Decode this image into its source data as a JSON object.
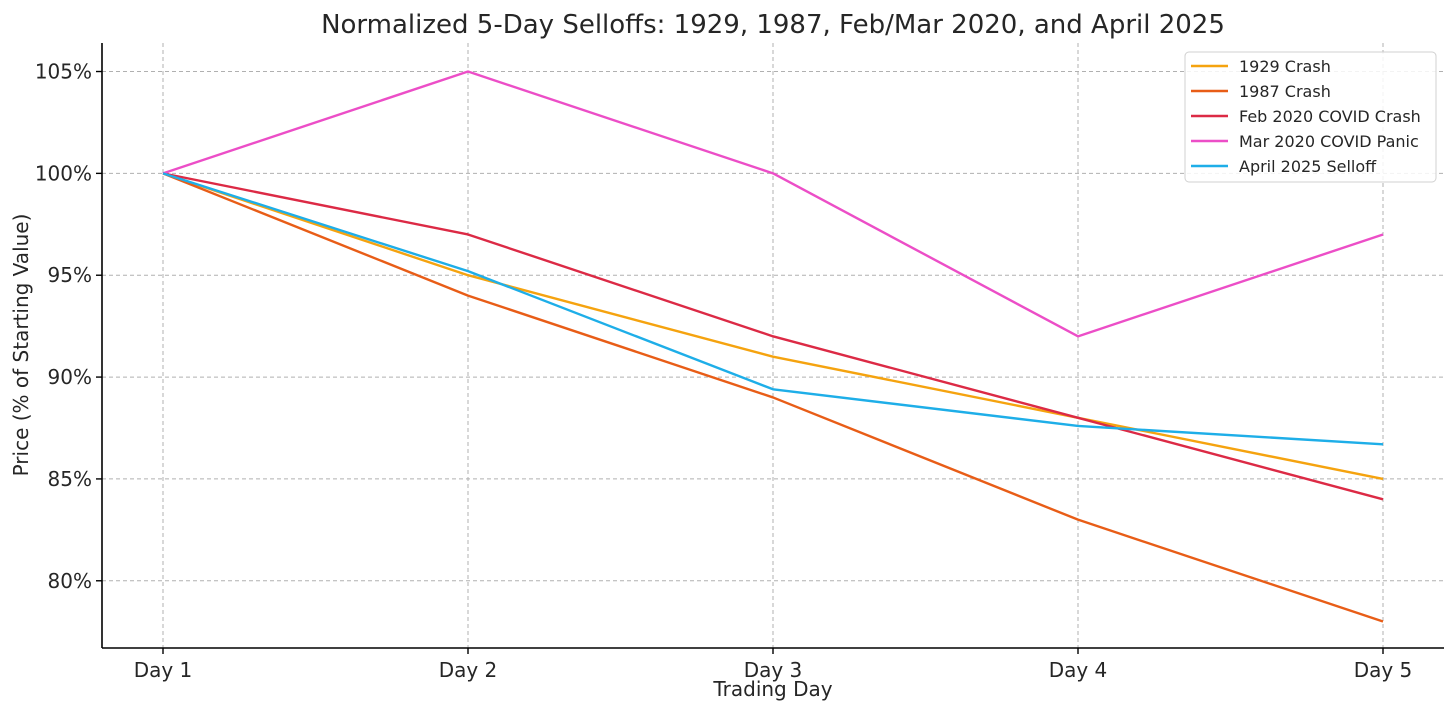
{
  "chart_data": {
    "type": "line",
    "title": "Normalized 5-Day Selloffs: 1929, 1987, Feb/Mar 2020, and April 2025",
    "xlabel": "Trading Day",
    "ylabel": "Price (% of Starting Value)",
    "categories": [
      "Day 1",
      "Day 2",
      "Day 3",
      "Day 4",
      "Day 5"
    ],
    "ylim": [
      76.7,
      106.4
    ],
    "yticks": [
      80,
      85,
      90,
      95,
      100,
      105
    ],
    "ytick_labels": [
      "80%",
      "85%",
      "90%",
      "95%",
      "100%",
      "105%"
    ],
    "grid": true,
    "legend_position": "top-right",
    "series": [
      {
        "name": "1929 Crash",
        "color": "#f5a30f",
        "values": [
          100,
          95,
          91,
          88,
          85
        ]
      },
      {
        "name": "1987 Crash",
        "color": "#e85d17",
        "values": [
          100,
          94,
          89,
          83,
          78
        ]
      },
      {
        "name": "Feb 2020 COVID Crash",
        "color": "#dc2a45",
        "values": [
          100,
          97,
          92,
          88,
          84
        ]
      },
      {
        "name": "Mar 2020 COVID Panic",
        "color": "#ec4ec7",
        "values": [
          100,
          105,
          100,
          92,
          97
        ]
      },
      {
        "name": "April 2025 Selloff",
        "color": "#1eaee8",
        "values": [
          100,
          95.2,
          89.4,
          87.6,
          86.7
        ]
      }
    ]
  }
}
